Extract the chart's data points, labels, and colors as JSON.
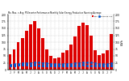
{
  "title": "Mo. Max. > Avg. PV/Inverter Performance Monthly Solar Energy Production Running Average",
  "months": [
    "J",
    "F",
    "M",
    "A",
    "M",
    "J",
    "J",
    "A",
    "S",
    "O",
    "N",
    "D",
    "J",
    "F",
    "M",
    "A",
    "M",
    "J",
    "J",
    "A",
    "S",
    "O",
    "N",
    "D",
    "J",
    "F"
  ],
  "bar_values": [
    55,
    75,
    100,
    115,
    140,
    165,
    175,
    150,
    115,
    75,
    50,
    40,
    45,
    62,
    70,
    90,
    120,
    158,
    172,
    162,
    125,
    72,
    52,
    58,
    70,
    130
  ],
  "running_avg": [
    18,
    20,
    22,
    24,
    24,
    24,
    26,
    26,
    24,
    24,
    22,
    20,
    20,
    20,
    22,
    22,
    24,
    24,
    26,
    26,
    26,
    24,
    22,
    20,
    20,
    24
  ],
  "small_blue": [
    16,
    16,
    18,
    18,
    18,
    16,
    18,
    16,
    16,
    16,
    16,
    14,
    16,
    14,
    16,
    16,
    16,
    16,
    18,
    16,
    16,
    14,
    14,
    14,
    16,
    16
  ],
  "bar_color": "#dd0000",
  "avg_color": "#0055cc",
  "bg_color": "#ffffff",
  "grid_color": "#cccccc",
  "ylim": [
    0,
    200
  ],
  "legend_bar": "kWh",
  "legend_avg": "Running Avg."
}
